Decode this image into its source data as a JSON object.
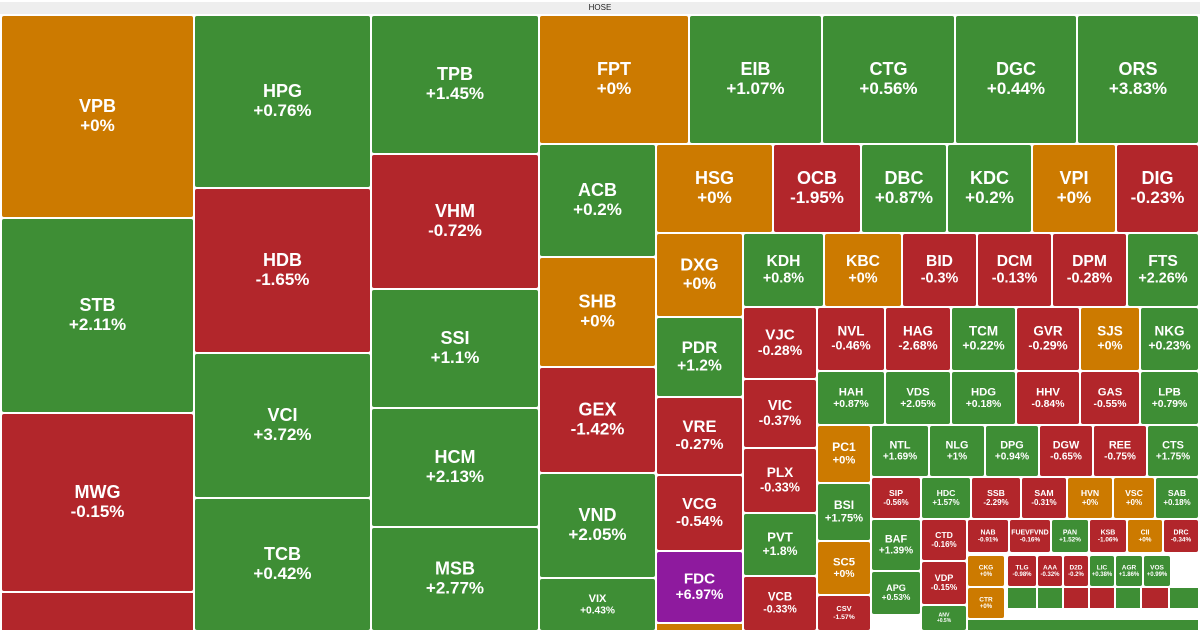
{
  "header": {
    "title": "HOSE"
  },
  "tiles": [
    {
      "ticker": "VPB",
      "change": "+0%",
      "color": "#cc7a00"
    },
    {
      "ticker": "STB",
      "change": "+2.11%",
      "color": "#3e8e35"
    },
    {
      "ticker": "MWG",
      "change": "-0.15%",
      "color": "#b2262b"
    },
    {
      "ticker": "HPG",
      "change": "+0.76%",
      "color": "#3e8e35"
    },
    {
      "ticker": "HDB",
      "change": "-1.65%",
      "color": "#b2262b"
    },
    {
      "ticker": "VCI",
      "change": "+3.72%",
      "color": "#3e8e35"
    },
    {
      "ticker": "TCB",
      "change": "+0.42%",
      "color": "#3e8e35"
    },
    {
      "ticker": "TPB",
      "change": "+1.45%",
      "color": "#3e8e35"
    },
    {
      "ticker": "VHM",
      "change": "-0.72%",
      "color": "#b2262b"
    },
    {
      "ticker": "SSI",
      "change": "+1.1%",
      "color": "#3e8e35"
    },
    {
      "ticker": "HCM",
      "change": "+2.13%",
      "color": "#3e8e35"
    },
    {
      "ticker": "MSB",
      "change": "+2.77%",
      "color": "#3e8e35"
    },
    {
      "ticker": "FPT",
      "change": "+0%",
      "color": "#cc7a00"
    },
    {
      "ticker": "ACB",
      "change": "+0.2%",
      "color": "#3e8e35"
    },
    {
      "ticker": "SHB",
      "change": "+0%",
      "color": "#cc7a00"
    },
    {
      "ticker": "GEX",
      "change": "-1.42%",
      "color": "#b2262b"
    },
    {
      "ticker": "VND",
      "change": "+2.05%",
      "color": "#3e8e35"
    },
    {
      "ticker": "VIX",
      "change": "+0.43%",
      "color": "#3e8e35"
    },
    {
      "ticker": "EIB",
      "change": "+1.07%",
      "color": "#3e8e35"
    },
    {
      "ticker": "CTG",
      "change": "+0.56%",
      "color": "#3e8e35"
    },
    {
      "ticker": "DGC",
      "change": "+0.44%",
      "color": "#3e8e35"
    },
    {
      "ticker": "ORS",
      "change": "+3.83%",
      "color": "#3e8e35"
    },
    {
      "ticker": "HSG",
      "change": "+0%",
      "color": "#cc7a00"
    },
    {
      "ticker": "OCB",
      "change": "-1.95%",
      "color": "#b2262b"
    },
    {
      "ticker": "DBC",
      "change": "+0.87%",
      "color": "#3e8e35"
    },
    {
      "ticker": "KDC",
      "change": "+0.2%",
      "color": "#3e8e35"
    },
    {
      "ticker": "VPI",
      "change": "+0%",
      "color": "#cc7a00"
    },
    {
      "ticker": "DIG",
      "change": "-0.23%",
      "color": "#b2262b"
    },
    {
      "ticker": "DXG",
      "change": "+0%",
      "color": "#cc7a00"
    },
    {
      "ticker": "PDR",
      "change": "+1.2%",
      "color": "#3e8e35"
    },
    {
      "ticker": "VRE",
      "change": "-0.27%",
      "color": "#b2262b"
    },
    {
      "ticker": "VCG",
      "change": "-0.54%",
      "color": "#b2262b"
    },
    {
      "ticker": "FDC",
      "change": "+6.97%",
      "color": "#8e1a9e"
    },
    {
      "ticker": "KDH",
      "change": "+0.8%",
      "color": "#3e8e35"
    },
    {
      "ticker": "KBC",
      "change": "+0%",
      "color": "#cc7a00"
    },
    {
      "ticker": "BID",
      "change": "-0.3%",
      "color": "#b2262b"
    },
    {
      "ticker": "DCM",
      "change": "-0.13%",
      "color": "#b2262b"
    },
    {
      "ticker": "DPM",
      "change": "-0.28%",
      "color": "#b2262b"
    },
    {
      "ticker": "FTS",
      "change": "+2.26%",
      "color": "#3e8e35"
    },
    {
      "ticker": "VJC",
      "change": "-0.28%",
      "color": "#b2262b"
    },
    {
      "ticker": "VIC",
      "change": "-0.37%",
      "color": "#b2262b"
    },
    {
      "ticker": "PLX",
      "change": "-0.33%",
      "color": "#b2262b"
    },
    {
      "ticker": "PVT",
      "change": "+1.8%",
      "color": "#3e8e35"
    },
    {
      "ticker": "VCB",
      "change": "-0.33%",
      "color": "#b2262b"
    },
    {
      "ticker": "NVL",
      "change": "-0.46%",
      "color": "#b2262b"
    },
    {
      "ticker": "HAG",
      "change": "-2.68%",
      "color": "#b2262b"
    },
    {
      "ticker": "TCM",
      "change": "+0.22%",
      "color": "#3e8e35"
    },
    {
      "ticker": "GVR",
      "change": "-0.29%",
      "color": "#b2262b"
    },
    {
      "ticker": "SJS",
      "change": "+0%",
      "color": "#cc7a00"
    },
    {
      "ticker": "NKG",
      "change": "+0.23%",
      "color": "#3e8e35"
    },
    {
      "ticker": "HAH",
      "change": "+0.87%",
      "color": "#3e8e35"
    },
    {
      "ticker": "VDS",
      "change": "+2.05%",
      "color": "#3e8e35"
    },
    {
      "ticker": "HDG",
      "change": "+0.18%",
      "color": "#3e8e35"
    },
    {
      "ticker": "HHV",
      "change": "-0.84%",
      "color": "#b2262b"
    },
    {
      "ticker": "GAS",
      "change": "-0.55%",
      "color": "#b2262b"
    },
    {
      "ticker": "LPB",
      "change": "+0.79%",
      "color": "#3e8e35"
    },
    {
      "ticker": "PC1",
      "change": "+0%",
      "color": "#cc7a00"
    },
    {
      "ticker": "NTL",
      "change": "+1.69%",
      "color": "#3e8e35"
    },
    {
      "ticker": "NLG",
      "change": "+1%",
      "color": "#3e8e35"
    },
    {
      "ticker": "DPG",
      "change": "+0.94%",
      "color": "#3e8e35"
    },
    {
      "ticker": "DGW",
      "change": "-0.65%",
      "color": "#b2262b"
    },
    {
      "ticker": "REE",
      "change": "-0.75%",
      "color": "#b2262b"
    },
    {
      "ticker": "CTS",
      "change": "+1.75%",
      "color": "#3e8e35"
    },
    {
      "ticker": "BSI",
      "change": "+1.75%",
      "color": "#3e8e35"
    },
    {
      "ticker": "SC5",
      "change": "+0%",
      "color": "#cc7a00"
    },
    {
      "ticker": "CSV",
      "change": "-1.57%",
      "color": "#b2262b"
    },
    {
      "ticker": "SIP",
      "change": "-0.56%",
      "color": "#b2262b"
    },
    {
      "ticker": "HDC",
      "change": "+1.57%",
      "color": "#3e8e35"
    },
    {
      "ticker": "SSB",
      "change": "-2.29%",
      "color": "#b2262b"
    },
    {
      "ticker": "SAM",
      "change": "-0.31%",
      "color": "#b2262b"
    },
    {
      "ticker": "HVN",
      "change": "+0%",
      "color": "#cc7a00"
    },
    {
      "ticker": "VSC",
      "change": "+0%",
      "color": "#cc7a00"
    },
    {
      "ticker": "SAB",
      "change": "+0.18%",
      "color": "#3e8e35"
    },
    {
      "ticker": "BAF",
      "change": "+1.39%",
      "color": "#3e8e35"
    },
    {
      "ticker": "APG",
      "change": "+0.53%",
      "color": "#3e8e35"
    },
    {
      "ticker": "ANV",
      "change": "+0.5%",
      "color": "#3e8e35"
    },
    {
      "ticker": "CTD",
      "change": "-0.16%",
      "color": "#b2262b"
    },
    {
      "ticker": "VDP",
      "change": "-0.15%",
      "color": "#b2262b"
    },
    {
      "ticker": "NAB",
      "change": "-0.91%",
      "color": "#b2262b"
    },
    {
      "ticker": "FUEVFVND",
      "change": "-0.16%",
      "color": "#b2262b"
    },
    {
      "ticker": "PAN",
      "change": "+1.52%",
      "color": "#3e8e35"
    },
    {
      "ticker": "KSB",
      "change": "-1.06%",
      "color": "#b2262b"
    },
    {
      "ticker": "CII",
      "change": "+0%",
      "color": "#cc7a00"
    },
    {
      "ticker": "DRC",
      "change": "-0.34%",
      "color": "#b2262b"
    },
    {
      "ticker": "CKG",
      "change": "+0%",
      "color": "#cc7a00"
    },
    {
      "ticker": "TLG",
      "change": "-0.98%",
      "color": "#b2262b"
    },
    {
      "ticker": "AAA",
      "change": "-0.32%",
      "color": "#b2262b"
    },
    {
      "ticker": "D2D",
      "change": "-0.2%",
      "color": "#b2262b"
    },
    {
      "ticker": "LIC",
      "change": "+0.38%",
      "color": "#3e8e35"
    },
    {
      "ticker": "AGR",
      "change": "+1.86%",
      "color": "#3e8e35"
    },
    {
      "ticker": "VOS",
      "change": "+0.99%",
      "color": "#3e8e35"
    },
    {
      "ticker": "CTR",
      "change": "+0%",
      "color": "#cc7a00"
    }
  ]
}
